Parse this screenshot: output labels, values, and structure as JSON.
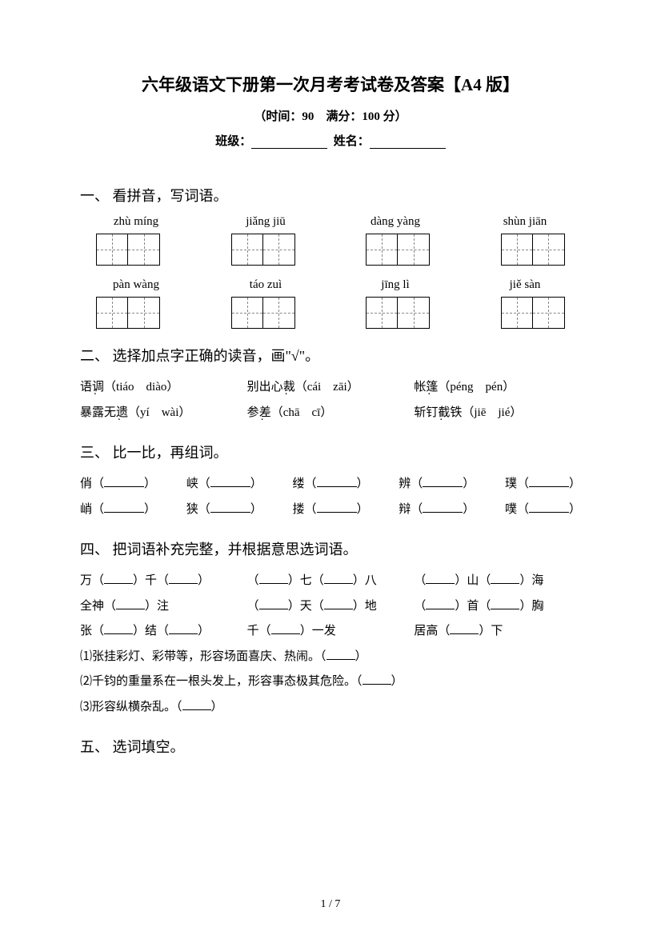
{
  "header": {
    "title": "六年级语文下册第一次月考考试卷及答案【A4 版】",
    "subtitle": "（时间：90　满分：100 分）",
    "class_label": "班级：",
    "name_label": "姓名："
  },
  "section1": {
    "heading": "一、 看拼音，写词语。",
    "row1": [
      "zhù míng",
      "jiǎng jiū",
      "dàng yàng",
      "shùn jiān"
    ],
    "row2": [
      "pàn wàng",
      "táo zuì",
      "jīng lì",
      "jiě sàn"
    ]
  },
  "section2": {
    "heading": "二、 选择加点字正确的读音，画\"√\"。",
    "items": [
      {
        "word_pre": "语",
        "dot": "调",
        "opts": "（tiáo　diào）"
      },
      {
        "word_pre": "别出心",
        "dot": "裁",
        "opts": "（cái　zāi）"
      },
      {
        "word_pre": "帐",
        "dot": "篷",
        "opts": "（péng　pén）"
      },
      {
        "word_pre": "暴露无",
        "dot": "遗",
        "opts": "（yí　wài）"
      },
      {
        "word_pre": "参",
        "dot": "差",
        "opts": "（chā　cī）"
      },
      {
        "word_pre": "斩钉",
        "dot": "截",
        "word_post": "铁",
        "opts": "（jiē　jié）"
      }
    ]
  },
  "section3": {
    "heading": "三、 比一比，再组词。",
    "row1": [
      "俏",
      "峡",
      "缕",
      "辨",
      "璞"
    ],
    "row2": [
      "峭",
      "狭",
      "搂",
      "辩",
      "噗"
    ]
  },
  "section4": {
    "heading": "四、 把词语补充完整，并根据意思选词语。",
    "r1": {
      "a1": "万（",
      "a2": "）千（",
      "a3": "）",
      "b1": "（",
      "b2": "）七（",
      "b3": "）八",
      "c1": "（",
      "c2": "）山（",
      "c3": "）海"
    },
    "r2": {
      "a1": "全神（",
      "a2": "）注",
      "b1": "（",
      "b2": "）天（",
      "b3": "）地",
      "c1": "（",
      "c2": "）首（",
      "c3": "）胸"
    },
    "r3": {
      "a1": "张（",
      "a2": "）结（",
      "a3": "）",
      "b1": "千（",
      "b2": "）一发",
      "c1": "居高（",
      "c2": "）下"
    },
    "desc1": "⑴张挂彩灯、彩带等，形容场面喜庆、热闹。（",
    "desc2": "⑵千钧的重量系在一根头发上，形容事态极其危险。（",
    "desc3": "⑶形容纵横杂乱。（",
    "close": "）"
  },
  "section5": {
    "heading": "五、 选词填空。"
  },
  "page": "1 / 7"
}
